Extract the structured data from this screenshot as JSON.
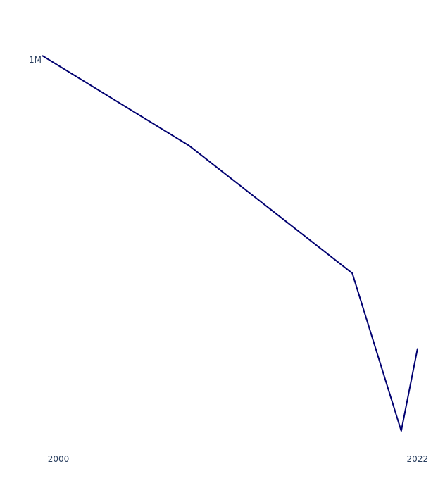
{
  "chart_data": {
    "type": "line",
    "title": "",
    "xlabel": "",
    "ylabel": "",
    "x": [
      2000,
      2009,
      2019,
      2022,
      2023
    ],
    "series": [
      {
        "values": [
          1000000,
          880000,
          710000,
          500000,
          610000
        ],
        "color": "#000070"
      }
    ],
    "xlim": [
      2000,
      2023
    ],
    "ylim": [
      500000,
      1000000
    ],
    "x_ticks": [
      {
        "value": 2000,
        "label": "2000"
      },
      {
        "value": 2022,
        "label": "2022"
      }
    ],
    "y_ticks": [
      {
        "value": 1000000,
        "label": "1M"
      }
    ],
    "grid": false,
    "legend": "none"
  }
}
